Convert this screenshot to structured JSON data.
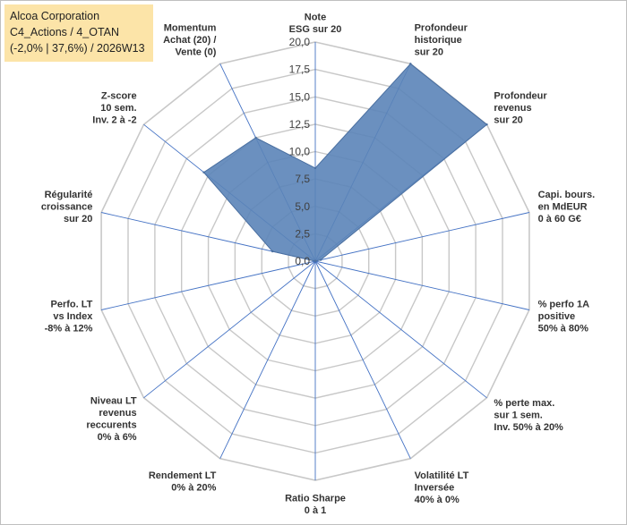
{
  "header": {
    "title": "Alcoa Corporation",
    "subtitle": "C4_Actions / 4_OTAN",
    "info": "(-2,0% | 37,6%) / 2026W13"
  },
  "chart_data": {
    "type": "radar",
    "title": "Alcoa Corporation",
    "rlim": [
      0,
      20
    ],
    "ticks": [
      "0,0",
      "2,5",
      "5,0",
      "7,5",
      "10,0",
      "12,5",
      "15,0",
      "17,5",
      "20,0"
    ],
    "grid": true,
    "axes": [
      {
        "label": [
          "Note",
          "ESG sur 20"
        ],
        "value": 8.5
      },
      {
        "label": [
          "Profondeur",
          "historique",
          "sur 20"
        ],
        "value": 20
      },
      {
        "label": [
          "Profondeur",
          "revenus",
          "sur 20"
        ],
        "value": 20
      },
      {
        "label": [
          "Capi. bours.",
          "en MdEUR",
          "0 à 60 G€"
        ],
        "value": 0.5
      },
      {
        "label": [
          "% perfo 1A",
          "positive",
          "50% à 80%"
        ],
        "value": 0
      },
      {
        "label": [
          "% perte max.",
          "sur 1 sem.",
          "Inv. 50% à 20%"
        ],
        "value": 0
      },
      {
        "label": [
          "Volatilité LT",
          "Inversée",
          "40% à 0%"
        ],
        "value": 0
      },
      {
        "label": [
          "Ratio Sharpe",
          "0 à 1"
        ],
        "value": 0
      },
      {
        "label": [
          "Rendement LT",
          "0% à 20%"
        ],
        "value": 0
      },
      {
        "label": [
          "Niveau LT",
          "revenus",
          "reccurents",
          "0% à 6%"
        ],
        "value": 0
      },
      {
        "label": [
          "Perfo. LT",
          "vs Index",
          "-8% à 12%"
        ],
        "value": 0
      },
      {
        "label": [
          "Régularité",
          "croissance",
          "sur 20"
        ],
        "value": 4
      },
      {
        "label": [
          "Z-score",
          "10 sem.",
          "Inv. 2 à -2"
        ],
        "value": 13
      },
      {
        "label": [
          "Momentum",
          "Achat (20) /",
          "Vente (0)"
        ],
        "value": 12.5
      }
    ],
    "colors": {
      "fill": "#5b84b8",
      "stroke": "#4a6fa0",
      "grid": "#c8c8c8",
      "spoke": "#4472c4"
    }
  }
}
